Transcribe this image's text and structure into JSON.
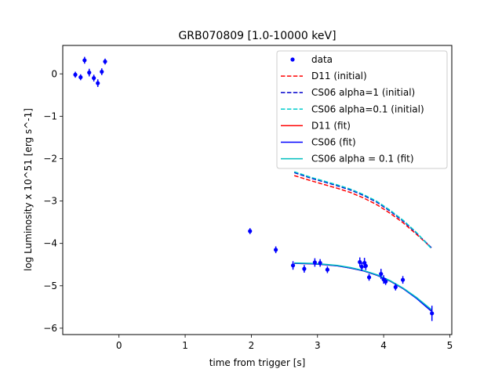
{
  "chart_data": {
    "type": "scatter",
    "title": "GRB070809 [1.0-10000 keV]",
    "xlabel": "time from trigger [s]",
    "ylabel": "log Luminosity x 10^51 [erg s^-1]",
    "xlim": [
      -0.85,
      5.03
    ],
    "ylim": [
      -6.15,
      0.67
    ],
    "xticks": [
      0,
      1,
      2,
      3,
      4,
      5
    ],
    "yticks": [
      0,
      -1,
      -2,
      -3,
      -4,
      -5,
      -6
    ],
    "grid": false,
    "legend_position": "upper right",
    "data": {
      "name": "data",
      "color": "#0000ff",
      "points": [
        {
          "x": -0.66,
          "y": -0.02,
          "err": 0.07
        },
        {
          "x": -0.58,
          "y": -0.08,
          "err": 0.07
        },
        {
          "x": -0.52,
          "y": 0.32,
          "err": 0.08
        },
        {
          "x": -0.45,
          "y": 0.03,
          "err": 0.09
        },
        {
          "x": -0.38,
          "y": -0.1,
          "err": 0.08
        },
        {
          "x": -0.32,
          "y": -0.22,
          "err": 0.09
        },
        {
          "x": -0.26,
          "y": 0.05,
          "err": 0.08
        },
        {
          "x": -0.21,
          "y": 0.29,
          "err": 0.07
        },
        {
          "x": 1.98,
          "y": -3.71,
          "err": 0.07
        },
        {
          "x": 2.37,
          "y": -4.15,
          "err": 0.08
        },
        {
          "x": 2.63,
          "y": -4.52,
          "err": 0.1
        },
        {
          "x": 2.8,
          "y": -4.6,
          "err": 0.09
        },
        {
          "x": 2.96,
          "y": -4.45,
          "err": 0.1
        },
        {
          "x": 3.04,
          "y": -4.46,
          "err": 0.09
        },
        {
          "x": 3.15,
          "y": -4.62,
          "err": 0.08
        },
        {
          "x": 3.64,
          "y": -4.44,
          "err": 0.11
        },
        {
          "x": 3.67,
          "y": -4.55,
          "err": 0.1
        },
        {
          "x": 3.71,
          "y": -4.46,
          "err": 0.12
        },
        {
          "x": 3.73,
          "y": -4.53,
          "err": 0.1
        },
        {
          "x": 3.78,
          "y": -4.8,
          "err": 0.08
        },
        {
          "x": 3.96,
          "y": -4.72,
          "err": 0.12
        },
        {
          "x": 4.0,
          "y": -4.85,
          "err": 0.1
        },
        {
          "x": 4.03,
          "y": -4.9,
          "err": 0.08
        },
        {
          "x": 4.18,
          "y": -5.03,
          "err": 0.08
        },
        {
          "x": 4.29,
          "y": -4.86,
          "err": 0.09
        },
        {
          "x": 4.73,
          "y": -5.65,
          "err": 0.18
        }
      ]
    },
    "series": [
      {
        "name": "D11 (initial)",
        "color": "#ff0000",
        "dash": "dashed",
        "x": [
          2.65,
          2.9,
          3.1,
          3.3,
          3.5,
          3.7,
          3.9,
          4.1,
          4.3,
          4.5,
          4.72
        ],
        "y": [
          -2.4,
          -2.52,
          -2.61,
          -2.7,
          -2.8,
          -2.93,
          -3.09,
          -3.29,
          -3.52,
          -3.79,
          -4.1
        ]
      },
      {
        "name": "CS06 alpha=1 (initial)",
        "color": "#0000cc",
        "dash": "dashed",
        "x": [
          2.65,
          2.9,
          3.1,
          3.3,
          3.5,
          3.7,
          3.9,
          4.1,
          4.3,
          4.5,
          4.72
        ],
        "y": [
          -2.33,
          -2.46,
          -2.55,
          -2.64,
          -2.74,
          -2.87,
          -3.03,
          -3.24,
          -3.48,
          -3.76,
          -4.1
        ]
      },
      {
        "name": "CS06 alpha=0.1 (initial)",
        "color": "#00cccc",
        "dash": "dashed",
        "x": [
          2.65,
          2.9,
          3.1,
          3.3,
          3.5,
          3.7,
          3.9,
          4.1,
          4.3,
          4.5,
          4.72
        ],
        "y": [
          -2.31,
          -2.44,
          -2.53,
          -2.62,
          -2.72,
          -2.85,
          -3.01,
          -3.22,
          -3.46,
          -3.75,
          -4.12
        ]
      },
      {
        "name": "D11 (fit)",
        "color": "#ff0000",
        "dash": "solid",
        "x": [
          2.65,
          2.9,
          3.1,
          3.3,
          3.5,
          3.7,
          3.9,
          4.1,
          4.3,
          4.5,
          4.72
        ],
        "y": [
          -4.47,
          -4.48,
          -4.5,
          -4.53,
          -4.58,
          -4.65,
          -4.75,
          -4.89,
          -5.07,
          -5.29,
          -5.58
        ]
      },
      {
        "name": "CS06 (fit)",
        "color": "#0000ff",
        "dash": "solid",
        "x": [
          2.65,
          2.9,
          3.1,
          3.3,
          3.5,
          3.7,
          3.9,
          4.1,
          4.3,
          4.5,
          4.72
        ],
        "y": [
          -4.47,
          -4.48,
          -4.5,
          -4.53,
          -4.58,
          -4.65,
          -4.75,
          -4.89,
          -5.07,
          -5.3,
          -5.6
        ]
      },
      {
        "name": "CS06 alpha = 0.1 (fit)",
        "color": "#00bfbf",
        "dash": "solid",
        "x": [
          2.65,
          2.9,
          3.1,
          3.3,
          3.5,
          3.7,
          3.9,
          4.1,
          4.3,
          4.5,
          4.72
        ],
        "y": [
          -4.46,
          -4.47,
          -4.49,
          -4.52,
          -4.57,
          -4.64,
          -4.74,
          -4.88,
          -5.06,
          -5.28,
          -5.56
        ]
      }
    ]
  }
}
